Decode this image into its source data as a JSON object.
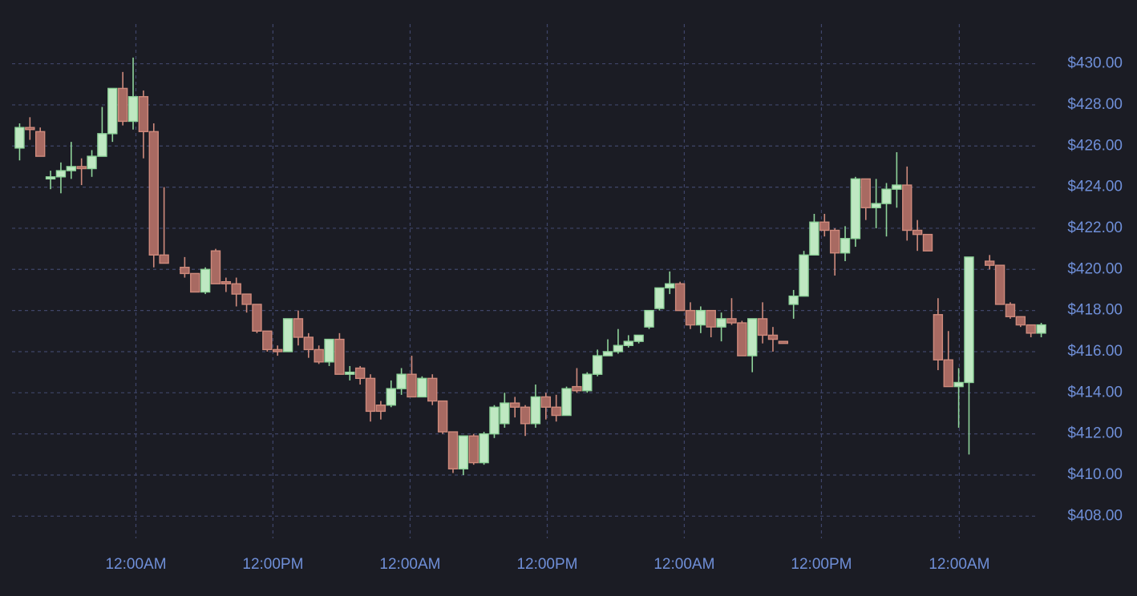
{
  "chart_data": {
    "type": "candlestick",
    "up_color": "#bfe8c2",
    "down_color": "#a86a62",
    "grid": true,
    "x": [
      0,
      1,
      2,
      3,
      4,
      5,
      6,
      7,
      8,
      9,
      10,
      11,
      12,
      13,
      14,
      16,
      17,
      18,
      19,
      20,
      21,
      22,
      23,
      24,
      25,
      26,
      27,
      28,
      29,
      30,
      31,
      32,
      33,
      34,
      35,
      36,
      37,
      38,
      39,
      40,
      41,
      42,
      43,
      44,
      45,
      46,
      47,
      48,
      49,
      50,
      51,
      52,
      53,
      54,
      55,
      56,
      57,
      58,
      59,
      60,
      61,
      62,
      63,
      64,
      65,
      66,
      67,
      68,
      69,
      70,
      71,
      72,
      73,
      74,
      75,
      76,
      77,
      78,
      79,
      80,
      81,
      82,
      83,
      84,
      85,
      86,
      87,
      88,
      89,
      90,
      91,
      92,
      94,
      95,
      96,
      97,
      98,
      99
    ],
    "open": [
      425.9,
      426.9,
      426.7,
      424.4,
      424.5,
      424.8,
      425.0,
      424.9,
      425.5,
      426.6,
      428.8,
      427.2,
      428.4,
      426.7,
      420.7,
      420.1,
      419.8,
      418.9,
      420.9,
      419.4,
      419.3,
      418.8,
      418.3,
      417.0,
      416.1,
      416.0,
      417.6,
      416.7,
      416.1,
      415.5,
      416.6,
      414.9,
      415.2,
      414.7,
      413.4,
      413.4,
      414.2,
      414.9,
      413.8,
      414.7,
      413.6,
      412.1,
      410.3,
      411.9,
      410.6,
      412.0,
      412.5,
      413.5,
      413.3,
      412.5,
      413.8,
      413.3,
      412.9,
      414.3,
      414.1,
      414.9,
      415.8,
      416.0,
      416.3,
      416.5,
      417.2,
      418.1,
      419.1,
      419.3,
      418.0,
      417.3,
      418.0,
      417.2,
      417.6,
      417.4,
      415.8,
      417.6,
      416.8,
      416.5,
      418.3,
      418.7,
      420.7,
      422.3,
      421.9,
      420.8,
      421.5,
      424.4,
      423.0,
      423.2,
      423.9,
      424.1,
      421.9,
      421.7,
      417.8,
      415.6,
      414.3,
      414.5,
      420.4,
      420.2,
      418.3,
      417.7,
      417.3,
      416.9
    ],
    "high": [
      427.1,
      427.4,
      426.9,
      424.8,
      425.2,
      426.2,
      425.4,
      425.8,
      427.9,
      428.8,
      429.6,
      430.3,
      428.7,
      427.1,
      424.0,
      420.6,
      419.8,
      420.1,
      421.0,
      419.6,
      419.6,
      418.8,
      418.3,
      417.0,
      416.3,
      417.6,
      418.0,
      416.9,
      416.3,
      416.6,
      416.9,
      415.3,
      415.3,
      414.9,
      413.6,
      414.6,
      415.2,
      415.8,
      414.8,
      414.9,
      413.6,
      412.1,
      411.9,
      412.0,
      412.1,
      413.4,
      414.0,
      413.8,
      413.4,
      414.4,
      414.0,
      413.9,
      414.3,
      415.2,
      415.0,
      416.1,
      416.6,
      417.1,
      416.8,
      416.8,
      418.0,
      419.1,
      419.9,
      419.4,
      418.4,
      418.2,
      418.0,
      417.9,
      418.6,
      417.5,
      417.6,
      418.4,
      417.2,
      416.5,
      419.0,
      420.9,
      422.7,
      422.7,
      422.0,
      422.1,
      424.5,
      424.4,
      424.4,
      424.2,
      425.7,
      425.0,
      422.4,
      421.7,
      418.6,
      417.0,
      415.2,
      420.6,
      420.7,
      420.2,
      418.4,
      417.7,
      417.3,
      417.4
    ],
    "low": [
      425.3,
      426.3,
      425.5,
      423.9,
      423.7,
      424.4,
      424.1,
      424.5,
      425.5,
      426.2,
      427.0,
      426.8,
      425.4,
      420.1,
      420.3,
      419.6,
      418.9,
      418.8,
      419.3,
      418.9,
      418.2,
      417.9,
      416.9,
      416.0,
      415.8,
      416.0,
      416.3,
      415.7,
      415.4,
      415.3,
      414.9,
      414.6,
      414.4,
      412.6,
      412.7,
      413.3,
      413.9,
      413.8,
      413.8,
      413.4,
      412.0,
      410.1,
      410.0,
      410.5,
      410.5,
      411.8,
      412.3,
      412.8,
      411.9,
      412.3,
      412.7,
      412.6,
      412.9,
      414.0,
      414.0,
      414.8,
      415.8,
      415.9,
      416.2,
      416.4,
      417.1,
      418.0,
      418.8,
      418.0,
      417.1,
      416.9,
      416.7,
      416.5,
      417.3,
      415.8,
      415.0,
      416.4,
      416.0,
      416.4,
      417.6,
      418.7,
      420.7,
      421.6,
      419.7,
      420.4,
      421.1,
      422.4,
      422.0,
      421.6,
      423.0,
      421.4,
      420.9,
      420.9,
      415.1,
      414.3,
      412.3,
      411.0,
      420.0,
      418.3,
      417.6,
      417.2,
      416.7,
      416.7
    ],
    "close": [
      426.9,
      426.8,
      425.5,
      424.5,
      424.8,
      425.0,
      424.9,
      425.5,
      426.6,
      428.8,
      427.2,
      428.4,
      426.7,
      420.7,
      420.3,
      419.8,
      418.9,
      420.0,
      419.3,
      419.3,
      418.8,
      418.3,
      417.0,
      416.1,
      416.0,
      417.6,
      416.7,
      416.1,
      415.5,
      416.6,
      414.9,
      415.0,
      414.7,
      413.1,
      413.1,
      414.2,
      414.9,
      413.8,
      414.7,
      413.6,
      412.1,
      410.3,
      411.9,
      410.6,
      412.0,
      413.3,
      413.5,
      413.3,
      412.5,
      413.8,
      413.3,
      412.9,
      414.2,
      414.1,
      414.9,
      415.8,
      416.0,
      416.3,
      416.5,
      416.8,
      418.0,
      419.1,
      419.3,
      418.0,
      417.3,
      418.0,
      417.2,
      417.6,
      417.4,
      415.8,
      417.6,
      416.8,
      416.6,
      416.4,
      418.7,
      420.7,
      422.3,
      421.9,
      420.8,
      421.5,
      424.4,
      423.0,
      423.2,
      423.9,
      424.1,
      421.9,
      421.7,
      420.9,
      415.6,
      414.3,
      414.5,
      420.6,
      420.2,
      418.3,
      417.7,
      417.3,
      416.9,
      417.3
    ],
    "xlim": [
      -1.9,
      99.5
    ],
    "xticks": [
      {
        "value": 11.27,
        "label": "12:00AM"
      },
      {
        "value": 24.55,
        "label": "12:00PM"
      },
      {
        "value": 37.84,
        "label": "12:00AM"
      },
      {
        "value": 51.13,
        "label": "12:00PM"
      },
      {
        "value": 64.41,
        "label": "12:00AM"
      },
      {
        "value": 77.7,
        "label": "12:00PM"
      },
      {
        "value": 91.06,
        "label": "12:00AM"
      }
    ],
    "ylim": [
      407.0,
      433.1
    ],
    "yticks": [
      {
        "value": 408,
        "label": "$408.00"
      },
      {
        "value": 410,
        "label": "$410.00"
      },
      {
        "value": 412,
        "label": "$412.00"
      },
      {
        "value": 414,
        "label": "$414.00"
      },
      {
        "value": 416,
        "label": "$416.00"
      },
      {
        "value": 418,
        "label": "$418.00"
      },
      {
        "value": 420,
        "label": "$420.00"
      },
      {
        "value": 422,
        "label": "$422.00"
      },
      {
        "value": 424,
        "label": "$424.00"
      },
      {
        "value": 426,
        "label": "$426.00"
      },
      {
        "value": 428,
        "label": "$428.00"
      },
      {
        "value": 430,
        "label": "$430.00"
      }
    ]
  }
}
